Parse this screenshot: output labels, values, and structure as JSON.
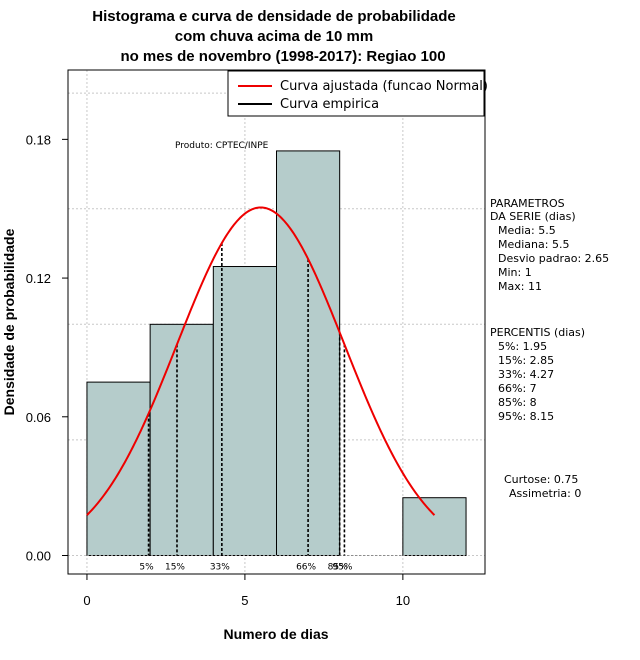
{
  "chart_data": {
    "type": "bar",
    "title": [
      "Histograma e curva de densidade de probabilidade",
      "com chuva acima de 10 mm",
      "no mes de novembro (1998-2017): Regiao 100"
    ],
    "xlabel": "Numero de dias",
    "ylabel": "Densidade de probabilidade",
    "xlim": [
      -0.6,
      12.6
    ],
    "ylim": [
      -0.008,
      0.21
    ],
    "xticks": [
      0,
      5,
      10
    ],
    "yticks": [
      0.0,
      0.06,
      0.12,
      0.18
    ],
    "ytick_labels": [
      "0.00",
      "0.06",
      "0.12",
      "0.18"
    ],
    "grid": true,
    "bins": [
      {
        "x0": 0,
        "x1": 2,
        "value": 0.075
      },
      {
        "x0": 2,
        "x1": 4,
        "value": 0.1
      },
      {
        "x0": 4,
        "x1": 6,
        "value": 0.125
      },
      {
        "x0": 6,
        "x1": 8,
        "value": 0.175
      },
      {
        "x0": 8,
        "x1": 10,
        "value": 0
      },
      {
        "x0": 10,
        "x1": 12,
        "value": 0.025
      }
    ],
    "fitted_curve": {
      "name": "Curva ajustada (funcao Normal)",
      "mean": 5.5,
      "sd": 2.65,
      "x_range": [
        0,
        11
      ],
      "color": "#ee0000"
    },
    "empirical_curve": {
      "name": "Curva empirica",
      "color": "#000000"
    },
    "bar_color": "#b5cccb",
    "legend_position": "top-right",
    "percentiles": [
      {
        "label": "5%",
        "x": 1.95
      },
      {
        "label": "15%",
        "x": 2.85
      },
      {
        "label": "33%",
        "x": 4.27
      },
      {
        "label": "66%",
        "x": 7
      },
      {
        "label": "85%",
        "x": 8
      },
      {
        "label": "95%",
        "x": 8.15
      }
    ],
    "annotation": "Produto: CPTEC/INPE",
    "side_panel": {
      "params_title": [
        "PARAMETROS",
        "DA SERIE (dias)"
      ],
      "params": [
        "Media: 5.5",
        "Mediana: 5.5",
        "Desvio padrao: 2.65",
        "Min: 1",
        "Max: 11"
      ],
      "percentis_title": "PERCENTIS (dias)",
      "percentis": [
        "5%: 1.95",
        "15%: 2.85",
        "33%: 4.27",
        "66%: 7",
        "85%: 8",
        "95%: 8.15"
      ],
      "stats": [
        "Curtose: 0.75",
        "Assimetria: 0"
      ]
    }
  }
}
